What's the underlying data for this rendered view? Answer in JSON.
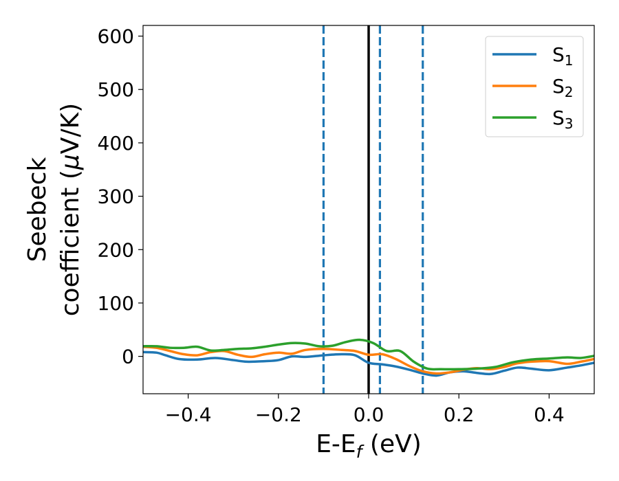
{
  "chart_data": {
    "type": "line",
    "title": "",
    "xlabel": "E-E",
    "xlabel_sub": "f",
    "xlabel_unit": " (eV)",
    "ylabel_line1": "Seebeck",
    "ylabel_line2": "coefficient  (",
    "ylabel_mu": "μ",
    "ylabel_unit": "V/K)",
    "xlim": [
      -0.5,
      0.5
    ],
    "ylim": [
      -70,
      620
    ],
    "xticks": [
      -0.4,
      -0.2,
      0.0,
      0.2,
      0.4
    ],
    "xtick_labels": [
      "−0.4",
      "−0.2",
      "0.0",
      "0.2",
      "0.4"
    ],
    "yticks": [
      0,
      100,
      200,
      300,
      400,
      500,
      600
    ],
    "ytick_labels": [
      "0",
      "100",
      "200",
      "300",
      "400",
      "500",
      "600"
    ],
    "grid": false,
    "legend_position": "top-right",
    "vlines": [
      {
        "x": 0.0,
        "style": "solid",
        "color": "#000000"
      },
      {
        "x": -0.1,
        "style": "dashed",
        "color": "#1f77b4"
      },
      {
        "x": 0.025,
        "style": "dashed",
        "color": "#1f77b4"
      },
      {
        "x": 0.12,
        "style": "dashed",
        "color": "#1f77b4"
      }
    ],
    "series": [
      {
        "name": "S",
        "sub": "1",
        "color": "#1f77b4",
        "x": [
          -0.5,
          -0.47,
          -0.45,
          -0.42,
          -0.38,
          -0.34,
          -0.3,
          -0.27,
          -0.23,
          -0.2,
          -0.17,
          -0.14,
          -0.1,
          -0.06,
          -0.03,
          0.0,
          0.03,
          0.06,
          0.09,
          0.12,
          0.15,
          0.18,
          0.21,
          0.24,
          0.27,
          0.3,
          0.33,
          0.36,
          0.4,
          0.44,
          0.47,
          0.5
        ],
        "y": [
          8,
          7,
          2,
          -5,
          -6,
          -3,
          -7,
          -10,
          -9,
          -7,
          0,
          -1,
          2,
          4,
          2,
          -12,
          -15,
          -19,
          -25,
          -32,
          -36,
          -30,
          -28,
          -31,
          -33,
          -27,
          -21,
          -23,
          -26,
          -21,
          -17,
          -12
        ]
      },
      {
        "name": "S",
        "sub": "2",
        "color": "#ff7f0e",
        "x": [
          -0.5,
          -0.47,
          -0.44,
          -0.41,
          -0.38,
          -0.35,
          -0.32,
          -0.29,
          -0.26,
          -0.23,
          -0.2,
          -0.17,
          -0.14,
          -0.1,
          -0.06,
          -0.03,
          0.0,
          0.03,
          0.06,
          0.09,
          0.12,
          0.15,
          0.18,
          0.21,
          0.24,
          0.27,
          0.3,
          0.33,
          0.36,
          0.4,
          0.44,
          0.47,
          0.5
        ],
        "y": [
          18,
          16,
          10,
          4,
          2,
          8,
          10,
          3,
          -1,
          4,
          7,
          5,
          12,
          14,
          12,
          10,
          3,
          4,
          -5,
          -18,
          -28,
          -32,
          -30,
          -25,
          -22,
          -24,
          -20,
          -13,
          -10,
          -9,
          -14,
          -10,
          -5
        ]
      },
      {
        "name": "S",
        "sub": "3",
        "color": "#2ca02c",
        "x": [
          -0.5,
          -0.47,
          -0.44,
          -0.41,
          -0.38,
          -0.35,
          -0.32,
          -0.29,
          -0.26,
          -0.23,
          -0.2,
          -0.17,
          -0.14,
          -0.11,
          -0.08,
          -0.05,
          -0.02,
          0.01,
          0.04,
          0.07,
          0.1,
          0.13,
          0.16,
          0.2,
          0.24,
          0.28,
          0.32,
          0.36,
          0.4,
          0.44,
          0.47,
          0.5
        ],
        "y": [
          19,
          19,
          16,
          16,
          18,
          11,
          12,
          14,
          15,
          18,
          22,
          25,
          24,
          19,
          20,
          27,
          31,
          25,
          10,
          10,
          -10,
          -23,
          -24,
          -24,
          -23,
          -20,
          -11,
          -6,
          -4,
          -2,
          -3,
          1
        ]
      }
    ]
  }
}
